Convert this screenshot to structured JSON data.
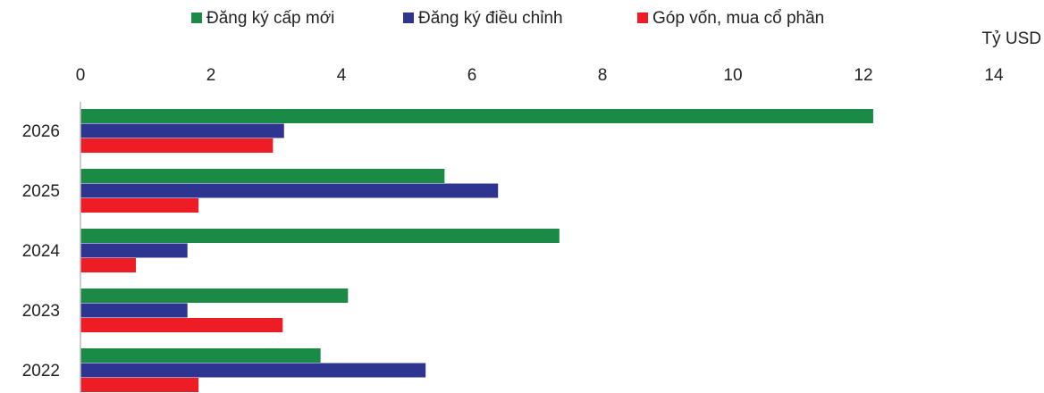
{
  "chart_data": {
    "type": "bar",
    "orientation": "horizontal",
    "x_axis_label": "Tỷ USD",
    "categories": [
      "2026",
      "2025",
      "2024",
      "2023",
      "2022"
    ],
    "series": [
      {
        "name": "Đăng ký cấp mới",
        "color": "#1a8a46",
        "values": [
          12.15,
          5.58,
          7.34,
          4.1,
          3.68
        ]
      },
      {
        "name": "Đăng ký điều chỉnh",
        "color": "#2e3590",
        "values": [
          3.12,
          6.4,
          1.64,
          1.64,
          5.29
        ]
      },
      {
        "name": "Góp vốn, mua cổ phần",
        "color": "#ee1c25",
        "values": [
          2.95,
          1.81,
          0.85,
          3.1,
          1.81
        ]
      }
    ],
    "xlim": [
      0,
      14
    ],
    "xticks": [
      0,
      2,
      4,
      6,
      8,
      10,
      12,
      14
    ],
    "legend": "top"
  }
}
